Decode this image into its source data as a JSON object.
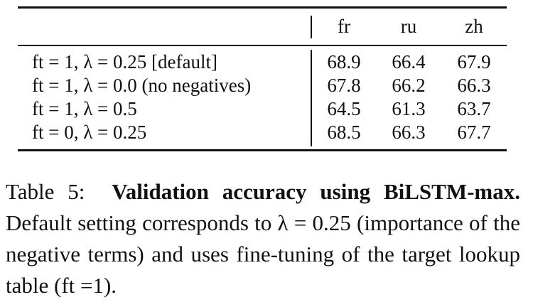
{
  "table": {
    "header": [
      "fr",
      "ru",
      "zh"
    ],
    "rows": [
      {
        "label": "ft = 1, λ = 0.25 [default]",
        "values": [
          68.9,
          66.4,
          67.9
        ]
      },
      {
        "label": "ft = 1, λ = 0.0 (no negatives)",
        "values": [
          67.8,
          66.2,
          66.3
        ]
      },
      {
        "label": "ft = 1, λ = 0.5",
        "values": [
          64.5,
          61.3,
          63.7
        ]
      },
      {
        "label": "ft = 0, λ = 0.25",
        "values": [
          68.5,
          66.3,
          67.7
        ]
      }
    ]
  },
  "caption": {
    "label": "Table 5:",
    "title": "Validation accuracy using BiLSTM-max.",
    "text": "Default setting corresponds to λ = 0.25 (importance of the negative terms) and uses fine-tuning of the target lookup table (ft =1)."
  }
}
